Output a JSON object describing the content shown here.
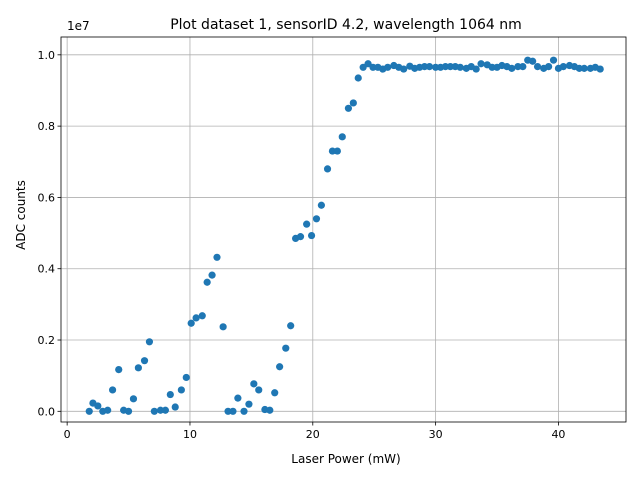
{
  "chart_data": {
    "type": "scatter",
    "title": "Plot dataset 1, sensorID 4.2, wavelength 1064 nm",
    "xlabel": "Laser Power (mW)",
    "ylabel": "ADC counts",
    "y_offset_label": "1e7",
    "xlim": [
      -0.5,
      45.5
    ],
    "ylim": [
      -0.03,
      1.05
    ],
    "x_ticks": [
      0,
      10,
      20,
      30,
      40
    ],
    "x_tick_labels": [
      "0",
      "10",
      "20",
      "30",
      "40"
    ],
    "y_ticks": [
      0.0,
      0.2,
      0.4,
      0.6,
      0.8,
      1.0
    ],
    "y_tick_labels": [
      "0.0",
      "0.2",
      "0.4",
      "0.6",
      "0.8",
      "1.0"
    ],
    "grid": true,
    "marker_color": "#1f77b4",
    "series": [
      {
        "x": [
          1.8,
          2.1,
          2.5,
          2.9,
          3.3,
          3.7,
          4.2,
          4.6,
          5.0,
          5.4,
          5.8,
          6.3,
          6.7,
          7.1,
          7.6,
          8.0,
          8.4,
          8.8,
          9.3,
          9.7,
          10.1,
          10.5,
          11.0,
          11.4,
          11.8,
          12.2,
          12.7,
          13.1,
          13.5,
          13.9,
          14.4,
          14.8,
          15.2,
          15.6,
          16.1,
          16.5,
          16.9,
          17.3,
          17.8,
          18.2,
          18.6,
          19.0,
          19.5,
          19.9,
          20.3,
          20.7,
          21.2,
          21.6,
          22.0,
          22.4,
          22.9,
          23.3,
          23.7,
          24.1,
          24.5,
          24.9,
          25.3,
          25.7,
          26.1,
          26.6,
          27.0,
          27.4,
          27.9,
          28.3,
          28.7,
          29.1,
          29.5,
          30.0,
          30.4,
          30.8,
          31.2,
          31.6,
          32.0,
          32.5,
          32.9,
          33.3,
          33.7,
          34.2,
          34.6,
          35.0,
          35.4,
          35.8,
          36.2,
          36.7,
          37.1,
          37.5,
          37.9,
          38.3,
          38.8,
          39.2,
          39.6,
          40.0,
          40.4,
          40.9,
          41.3,
          41.7,
          42.1,
          42.6,
          43.0,
          43.4
        ],
        "y": [
          0.0,
          0.023,
          0.015,
          0.0,
          0.003,
          0.06,
          0.117,
          0.003,
          0.0,
          0.035,
          0.122,
          0.142,
          0.195,
          0.0,
          0.003,
          0.003,
          0.047,
          0.012,
          0.06,
          0.095,
          0.247,
          0.262,
          0.268,
          0.362,
          0.382,
          0.432,
          0.237,
          0.0,
          0.0,
          0.037,
          0.0,
          0.02,
          0.077,
          0.06,
          0.005,
          0.003,
          0.052,
          0.125,
          0.177,
          0.24,
          0.485,
          0.49,
          0.525,
          0.493,
          0.54,
          0.578,
          0.68,
          0.73,
          0.73,
          0.77,
          0.85,
          0.865,
          0.935,
          0.965,
          0.975,
          0.965,
          0.965,
          0.96,
          0.965,
          0.97,
          0.965,
          0.96,
          0.968,
          0.962,
          0.965,
          0.967,
          0.967,
          0.965,
          0.965,
          0.967,
          0.967,
          0.967,
          0.965,
          0.962,
          0.967,
          0.96,
          0.975,
          0.972,
          0.965,
          0.965,
          0.97,
          0.967,
          0.962,
          0.967,
          0.967,
          0.985,
          0.982,
          0.967,
          0.962,
          0.967,
          0.985,
          0.962,
          0.967,
          0.97,
          0.967,
          0.962,
          0.962,
          0.962,
          0.965,
          0.96
        ]
      }
    ]
  }
}
